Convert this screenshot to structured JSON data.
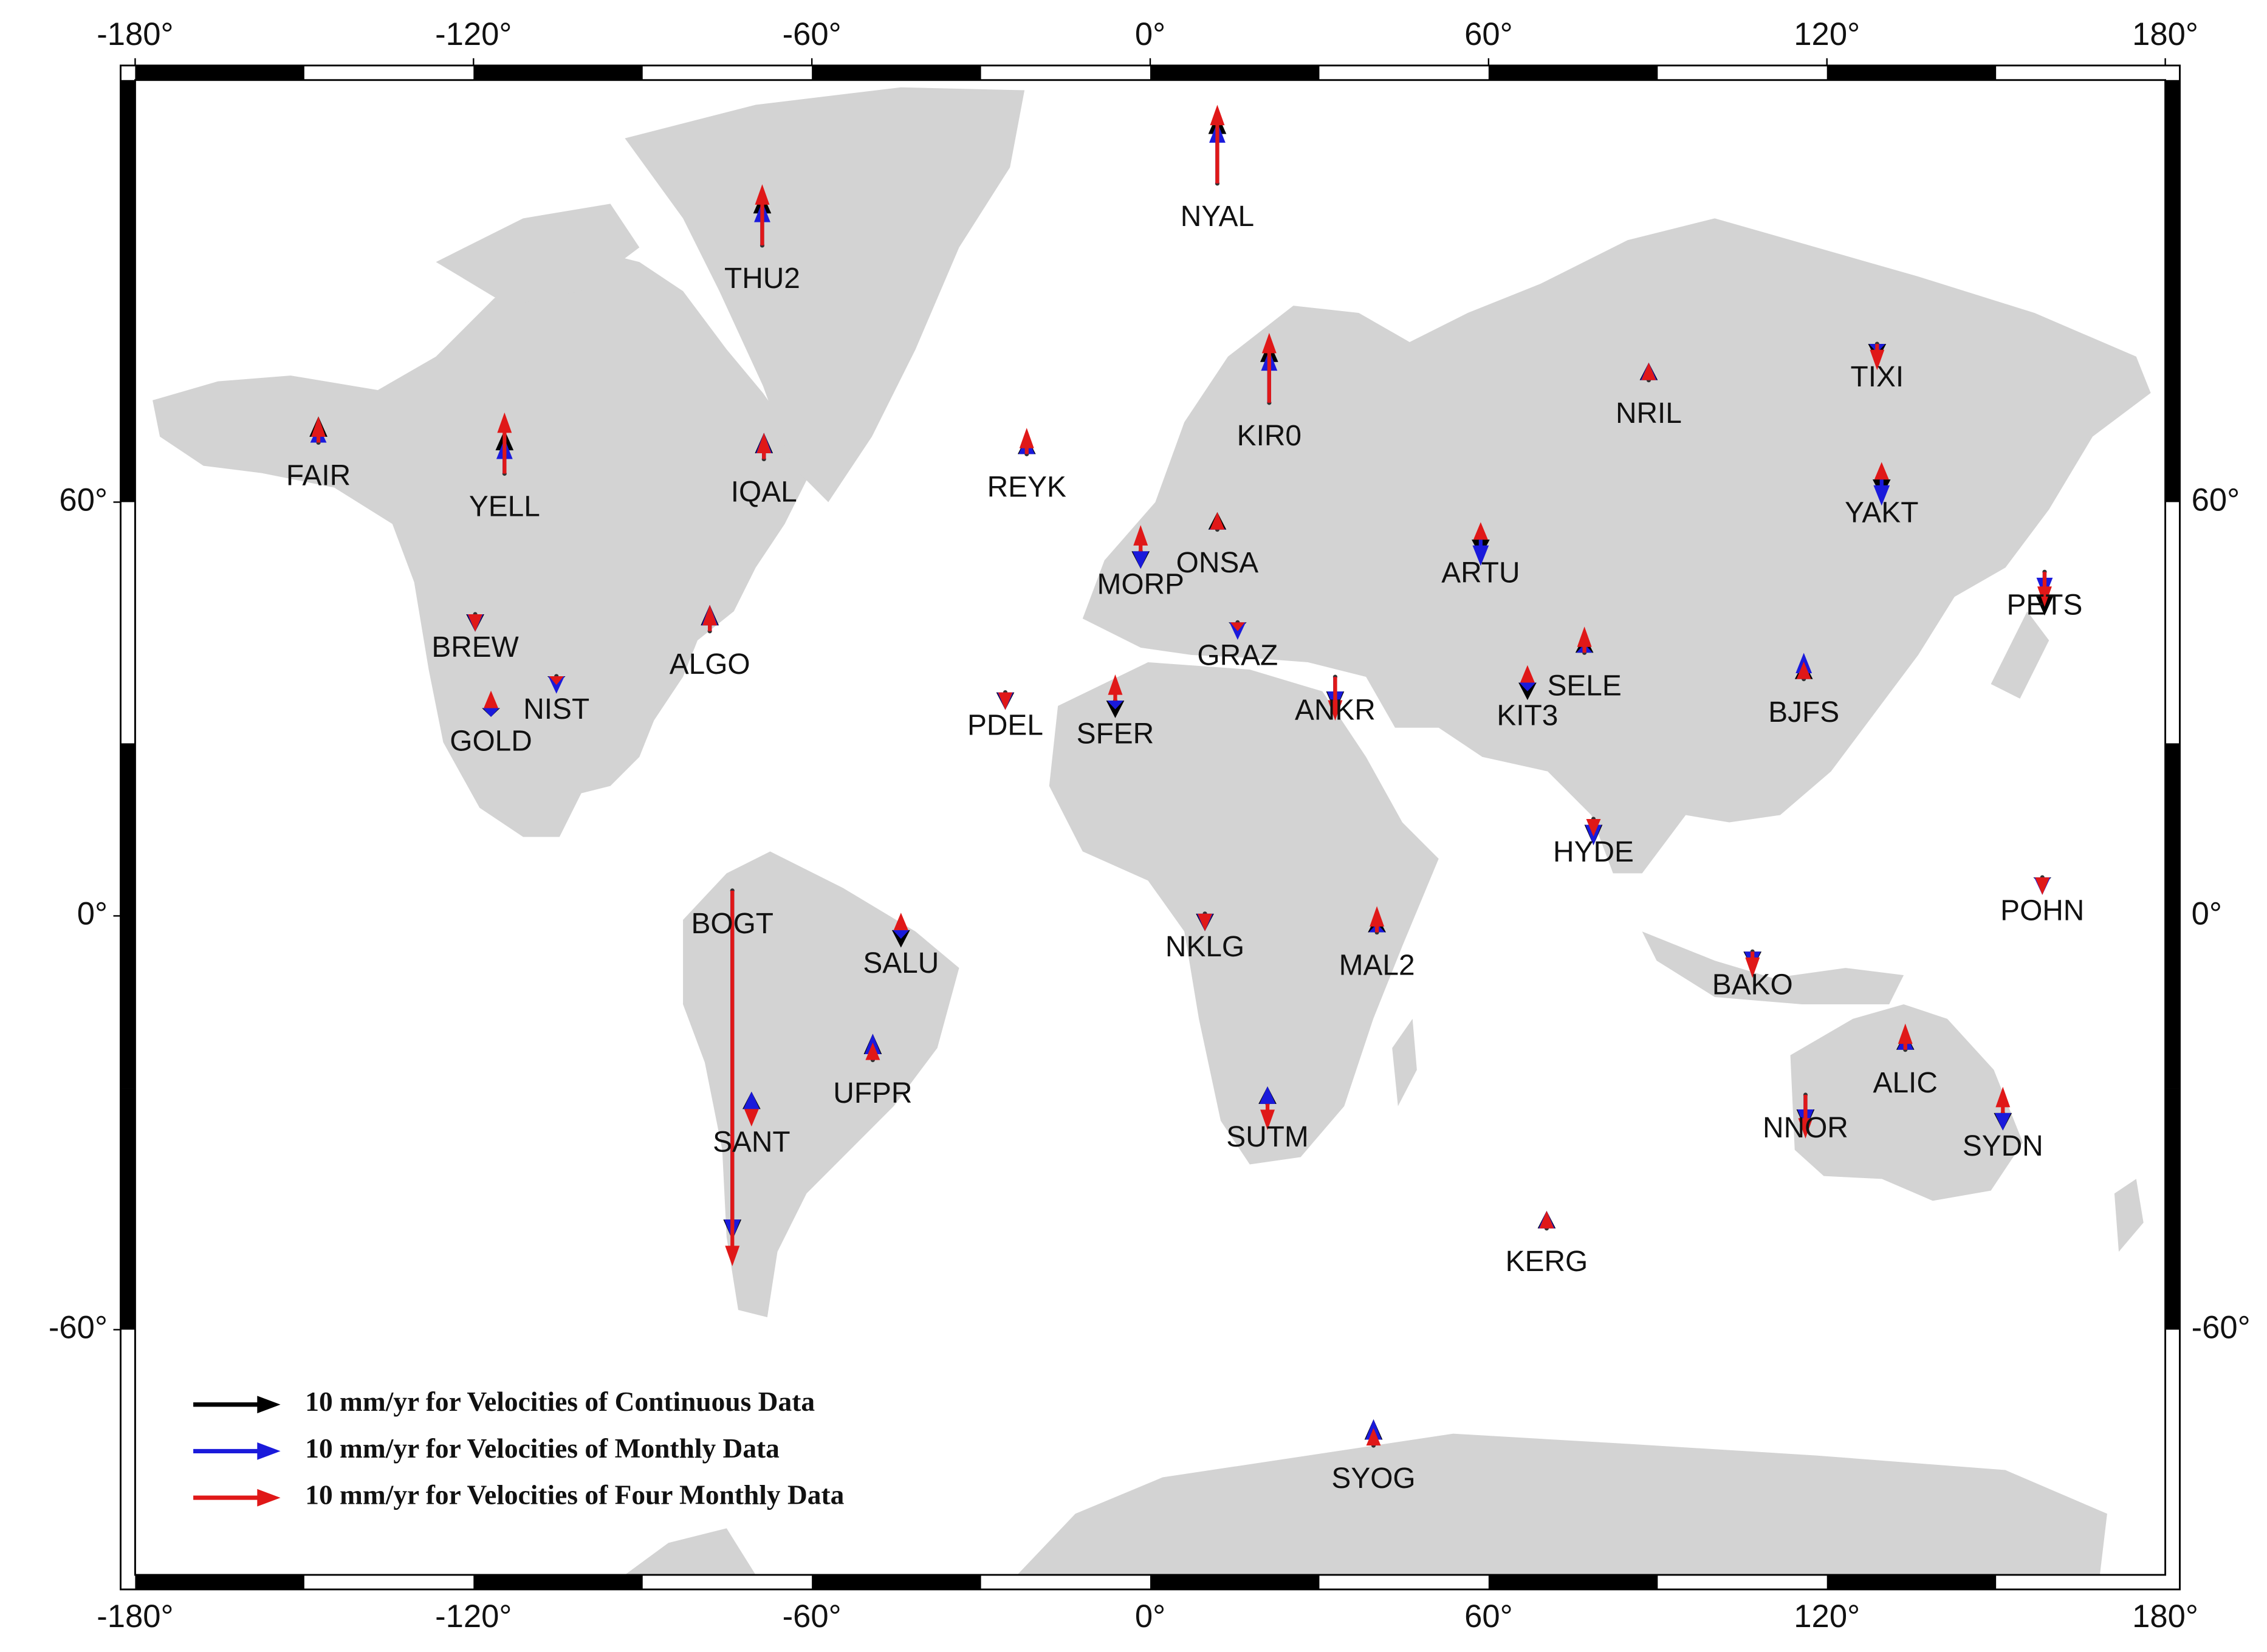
{
  "map": {
    "projection": "mercator",
    "xlim": [
      -180,
      180
    ],
    "ylim": [
      -76,
      82
    ],
    "xticks": [
      {
        "value": -180,
        "label": "-180°"
      },
      {
        "value": -120,
        "label": "-120°"
      },
      {
        "value": -60,
        "label": "-60°"
      },
      {
        "value": 0,
        "label": "0°"
      },
      {
        "value": 60,
        "label": "60°"
      },
      {
        "value": 120,
        "label": "120°"
      },
      {
        "value": 180,
        "label": "180°"
      }
    ],
    "yticks": [
      {
        "value": -60,
        "label": "-60°"
      },
      {
        "value": 0,
        "label": "0°"
      },
      {
        "value": 60,
        "label": "60°"
      }
    ],
    "legend": {
      "corner": "lower left",
      "items": [
        {
          "text": "10 mm/yr for Velocities of Continuous Data",
          "color": "#000000"
        },
        {
          "text": "10 mm/yr for Velocities of Monthly Data",
          "color": "#1a1adb"
        },
        {
          "text": "10 mm/yr for Velocities of Four Monthly Data",
          "color": "#e01818"
        }
      ]
    },
    "stations": [
      {
        "name": "FAIR",
        "lon": -147.5,
        "lat": 65.0,
        "up": [
          3,
          2,
          3
        ]
      },
      {
        "name": "YELL",
        "lon": -114.5,
        "lat": 62.5,
        "up": [
          5,
          4,
          7
        ]
      },
      {
        "name": "THU2",
        "lon": -68.8,
        "lat": 76.5,
        "up": [
          6,
          5,
          7
        ]
      },
      {
        "name": "IQAL",
        "lon": -68.5,
        "lat": 63.7,
        "up": [
          3,
          3,
          3
        ]
      },
      {
        "name": "REYK",
        "lon": -21.9,
        "lat": 64.1,
        "up": [
          2,
          2,
          3
        ]
      },
      {
        "name": "NYAL",
        "lon": 11.9,
        "lat": 78.9,
        "up": [
          8,
          7,
          9
        ]
      },
      {
        "name": "KIR0",
        "lon": 21.1,
        "lat": 67.9,
        "up": [
          7,
          6,
          8
        ]
      },
      {
        "name": "NRIL",
        "lon": 88.4,
        "lat": 69.4,
        "up": [
          2,
          2,
          2
        ]
      },
      {
        "name": "TIXI",
        "lon": 128.9,
        "lat": 71.6,
        "up": [
          -2,
          -1,
          -3
        ]
      },
      {
        "name": "YAKT",
        "lon": 129.7,
        "lat": 62.0,
        "up": [
          -2,
          -3,
          2
        ]
      },
      {
        "name": "ARTU",
        "lon": 58.6,
        "lat": 56.4,
        "up": [
          -2,
          -3,
          2
        ]
      },
      {
        "name": "ONSA",
        "lon": 11.9,
        "lat": 57.4,
        "up": [
          2,
          1,
          2
        ]
      },
      {
        "name": "MORP",
        "lon": -1.7,
        "lat": 55.2,
        "up": [
          -2,
          -2,
          3
        ]
      },
      {
        "name": "GRAZ",
        "lon": 15.5,
        "lat": 47.1,
        "up": [
          -1,
          -2,
          -1
        ]
      },
      {
        "name": "BREW",
        "lon": -119.7,
        "lat": 48.1,
        "up": [
          -2,
          -2,
          -2
        ]
      },
      {
        "name": "ALGO",
        "lon": -78.1,
        "lat": 46.0,
        "up": [
          3,
          3,
          3
        ]
      },
      {
        "name": "NIST",
        "lon": -105.3,
        "lat": 40.0,
        "up": [
          -1,
          -2,
          -1
        ]
      },
      {
        "name": "GOLD",
        "lon": -116.9,
        "lat": 35.4,
        "up": [
          -1,
          -1,
          2
        ]
      },
      {
        "name": "PDEL",
        "lon": -25.7,
        "lat": 37.7,
        "up": [
          -2,
          -2,
          -2
        ]
      },
      {
        "name": "SFER",
        "lon": -6.2,
        "lat": 36.5,
        "up": [
          -2,
          -1,
          3
        ]
      },
      {
        "name": "ANKR",
        "lon": 32.8,
        "lat": 39.9,
        "up": [
          -4,
          -4,
          -5
        ]
      },
      {
        "name": "KIT3",
        "lon": 66.9,
        "lat": 39.1,
        "up": [
          -2,
          -1,
          2
        ]
      },
      {
        "name": "SELE",
        "lon": 77.0,
        "lat": 43.2,
        "up": [
          2,
          1,
          3
        ]
      },
      {
        "name": "BJFS",
        "lon": 115.9,
        "lat": 39.6,
        "up": [
          2,
          3,
          2
        ]
      },
      {
        "name": "PETS",
        "lon": 158.6,
        "lat": 53.0,
        "up": [
          -5,
          -3,
          -4
        ]
      },
      {
        "name": "HYDE",
        "lon": 78.6,
        "lat": 17.4,
        "up": [
          -3,
          -3,
          -2
        ]
      },
      {
        "name": "POHN",
        "lon": 158.2,
        "lat": 7.0,
        "up": [
          -1,
          -2,
          -2
        ]
      },
      {
        "name": "BOGT",
        "lon": -74.1,
        "lat": 4.6,
        "up": [
          -40,
          -40,
          -43
        ]
      },
      {
        "name": "SALU",
        "lon": -44.2,
        "lat": -2.6,
        "up": [
          -2,
          -1,
          2
        ]
      },
      {
        "name": "NKLG",
        "lon": 9.7,
        "lat": 0.4,
        "up": [
          -2,
          -2,
          -2
        ]
      },
      {
        "name": "MAL2",
        "lon": 40.2,
        "lat": -3.0,
        "up": [
          2,
          1,
          3
        ]
      },
      {
        "name": "BAKO",
        "lon": 106.8,
        "lat": -6.5,
        "up": [
          -2,
          -2,
          -3
        ]
      },
      {
        "name": "ALIC",
        "lon": 133.9,
        "lat": -23.7,
        "up": [
          2,
          2,
          3
        ]
      },
      {
        "name": "UFPR",
        "lon": -49.2,
        "lat": -25.4,
        "up": [
          3,
          3,
          2
        ]
      },
      {
        "name": "SANT",
        "lon": -70.7,
        "lat": -33.2,
        "up": [
          2,
          2,
          -2
        ]
      },
      {
        "name": "SUTM",
        "lon": 20.8,
        "lat": -32.4,
        "up": [
          2,
          2,
          -3
        ]
      },
      {
        "name": "NNOR",
        "lon": 116.2,
        "lat": -31.0,
        "up": [
          -4,
          -4,
          -5
        ]
      },
      {
        "name": "SYDN",
        "lon": 151.2,
        "lat": -33.8,
        "up": [
          -2,
          -2,
          3
        ]
      },
      {
        "name": "KERG",
        "lon": 70.3,
        "lat": -49.4,
        "up": [
          2,
          2,
          2
        ]
      },
      {
        "name": "SYOG",
        "lon": 39.6,
        "lat": -69.0,
        "up": [
          3,
          3,
          2
        ]
      }
    ]
  }
}
